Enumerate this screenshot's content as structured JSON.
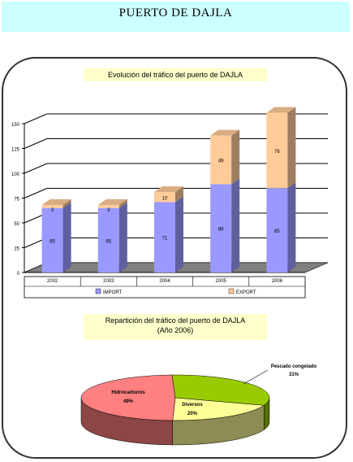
{
  "banner": {
    "title": "PUERTO DE DAJLA"
  },
  "captions": {
    "bar_title": "Evolución del tráfico del puerto de DAJLA",
    "pie_title_line1": "Repartición del tráfico del puerto de DAJLA",
    "pie_title_line2": "(Año 2006)"
  },
  "chart_data": [
    {
      "type": "bar",
      "stacked": true,
      "categories": [
        "2002",
        "2003",
        "2004",
        "2005",
        "2006"
      ],
      "series": [
        {
          "name": "IMPORT",
          "values": [
            65,
            65,
            71,
            89,
            85
          ],
          "color": "#9999ff"
        },
        {
          "name": "EXPORT",
          "values": [
            3,
            3,
            10,
            49,
            76
          ],
          "color": "#ffcc99"
        }
      ],
      "y_ticks": [
        "0",
        "25",
        "50",
        "75",
        "100",
        "125",
        "150"
      ],
      "ylim": [
        0,
        150
      ],
      "grid": true,
      "legend_position": "bottom"
    },
    {
      "type": "pie",
      "labels": [
        {
          "line1": "Pescado congelado",
          "line2": "31%"
        },
        {
          "line1": "Diversos",
          "line2": "20%"
        },
        {
          "line1": "Hidrocarburos",
          "line2": "49%"
        }
      ],
      "values": [
        31,
        20,
        49
      ],
      "colors": [
        "#99cc00",
        "#ffff99",
        "#ff8080"
      ]
    }
  ]
}
